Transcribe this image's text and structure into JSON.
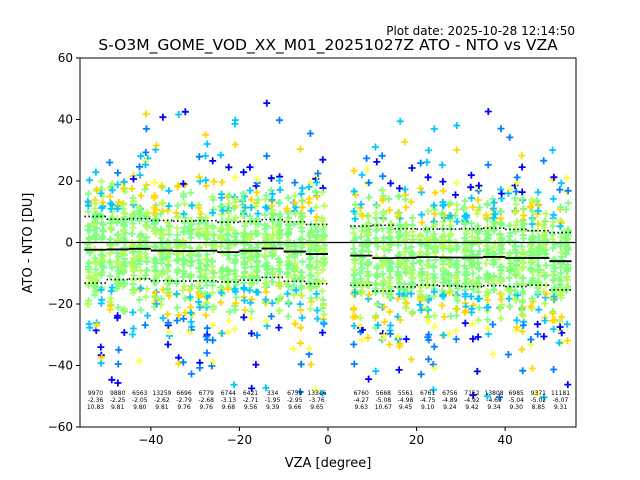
{
  "chart_data": {
    "type": "scatter",
    "plot_date_label": "Plot date: 2025-10-28 12:14:50",
    "title": "S-O3M_GOME_VOD_XX_M01_20251027Z ATO - NTO vs VZA",
    "xlabel": "VZA [degree]",
    "ylabel": "ATO - NTO [DU]",
    "xlim": [
      -56,
      56
    ],
    "ylim": [
      -60,
      60
    ],
    "xticks": [
      -40,
      -20,
      0,
      20,
      40
    ],
    "yticks": [
      -60,
      -40,
      -20,
      0,
      20,
      40,
      60
    ],
    "grid": false,
    "zero_line": 0,
    "scatter_colors": [
      "#0000ff",
      "#0080ff",
      "#00c8ff",
      "#7fff7f",
      "#b4ff5a",
      "#ffd700",
      "#ffff40"
    ],
    "bins": [
      {
        "vza": -52.5,
        "n": "9970",
        "mean": "-2.36",
        "sd": "10.83"
      },
      {
        "vza": -47.5,
        "n": "9880",
        "mean": "-2.25",
        "sd": "9.81"
      },
      {
        "vza": -42.5,
        "n": "6563",
        "mean": "-2.05",
        "sd": "9.80"
      },
      {
        "vza": -37.5,
        "n": "13259",
        "mean": "-2.62",
        "sd": "9.81"
      },
      {
        "vza": -32.5,
        "n": "6696",
        "mean": "-2.79",
        "sd": "9.76"
      },
      {
        "vza": -27.5,
        "n": "6779",
        "mean": "-2.68",
        "sd": "9.76"
      },
      {
        "vza": -22.5,
        "n": "6744",
        "mean": "-3.13",
        "sd": "9.68"
      },
      {
        "vza": -17.5,
        "n": "6421",
        "mean": "-2.71",
        "sd": "9.56"
      },
      {
        "vza": -12.5,
        "n": "334",
        "mean": "-1.95",
        "sd": "9.39"
      },
      {
        "vza": -7.5,
        "n": "6759",
        "mean": "-2.95",
        "sd": "9.66"
      },
      {
        "vza": -2.5,
        "n": "13316",
        "mean": "-3.76",
        "sd": "9.65"
      },
      {
        "vza": 7.5,
        "n": "6760",
        "mean": "-4.27",
        "sd": "9.63"
      },
      {
        "vza": 12.5,
        "n": "5668",
        "mean": "-5.08",
        "sd": "10.67"
      },
      {
        "vza": 17.5,
        "n": "5561",
        "mean": "-4.98",
        "sd": "9.45"
      },
      {
        "vza": 22.5,
        "n": "6761",
        "mean": "-4.75",
        "sd": "9.10"
      },
      {
        "vza": 27.5,
        "n": "6756",
        "mean": "-4.89",
        "sd": "9.24"
      },
      {
        "vza": 32.5,
        "n": "7152",
        "mean": "-4.92",
        "sd": "9.42"
      },
      {
        "vza": 37.5,
        "n": "13808",
        "mean": "-4.69",
        "sd": "9.34"
      },
      {
        "vza": 42.5,
        "n": "6985",
        "mean": "-5.04",
        "sd": "9.30"
      },
      {
        "vza": 47.5,
        "n": "9371",
        "mean": "-5.02",
        "sd": "8.85"
      },
      {
        "vza": 52.5,
        "n": "11181",
        "mean": "-6.07",
        "sd": "9.31"
      }
    ]
  }
}
